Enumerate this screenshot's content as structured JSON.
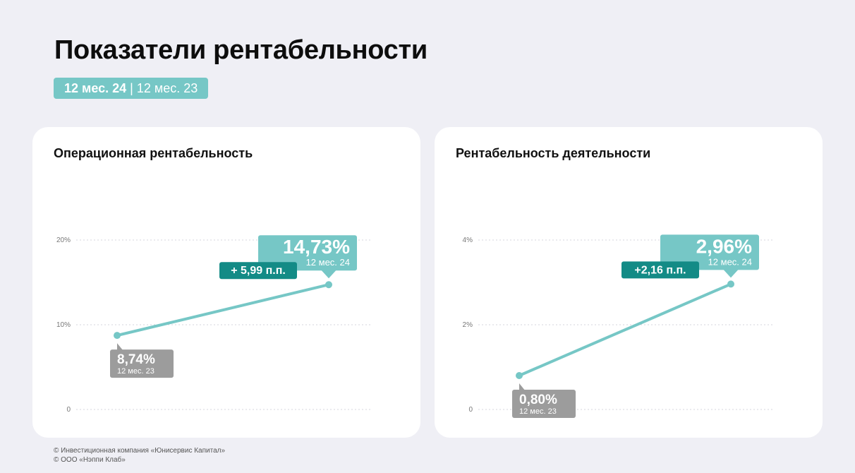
{
  "header": {
    "title": "Показатели рентабельности",
    "period_current": "12 мес. 24",
    "period_separator": "|",
    "period_previous": "12 мес. 23"
  },
  "colors": {
    "accent": "#76c7c6",
    "accent_dark": "#138b86",
    "neutral_label": "#9c9c9c",
    "background": "#efeff5",
    "card": "#ffffff"
  },
  "chart_data": [
    {
      "type": "line",
      "title": "Операционная рентабельность",
      "categories": [
        "12 мес. 23",
        "12 мес. 24"
      ],
      "series": [
        {
          "values": [
            8.74,
            14.73
          ]
        }
      ],
      "ylim": [
        0,
        20
      ],
      "yticks": [
        0,
        10,
        20
      ],
      "ytick_labels": [
        "0",
        "10%",
        "20%"
      ],
      "grid": true,
      "point_labels": [
        {
          "value": "8,74%",
          "period": "12 мес. 23"
        },
        {
          "value": "14,73%",
          "period": "12 мес. 24"
        }
      ],
      "delta_label": "+ 5,99 п.п."
    },
    {
      "type": "line",
      "title": "Рентабельность деятельности",
      "categories": [
        "12 мес. 23",
        "12 мес. 24"
      ],
      "series": [
        {
          "values": [
            0.8,
            2.96
          ]
        }
      ],
      "ylim": [
        0,
        4
      ],
      "yticks": [
        0,
        2,
        4
      ],
      "ytick_labels": [
        "0",
        "2%",
        "4%"
      ],
      "grid": true,
      "point_labels": [
        {
          "value": "0,80%",
          "period": "12 мес. 23"
        },
        {
          "value": "2,96%",
          "period": "12 мес. 24"
        }
      ],
      "delta_label": "+2,16 п.п."
    }
  ],
  "footer": {
    "line1": "© Инвестиционная компания «Юнисервис Капитал»",
    "line2": "© ООО «Нэппи Клаб»"
  }
}
